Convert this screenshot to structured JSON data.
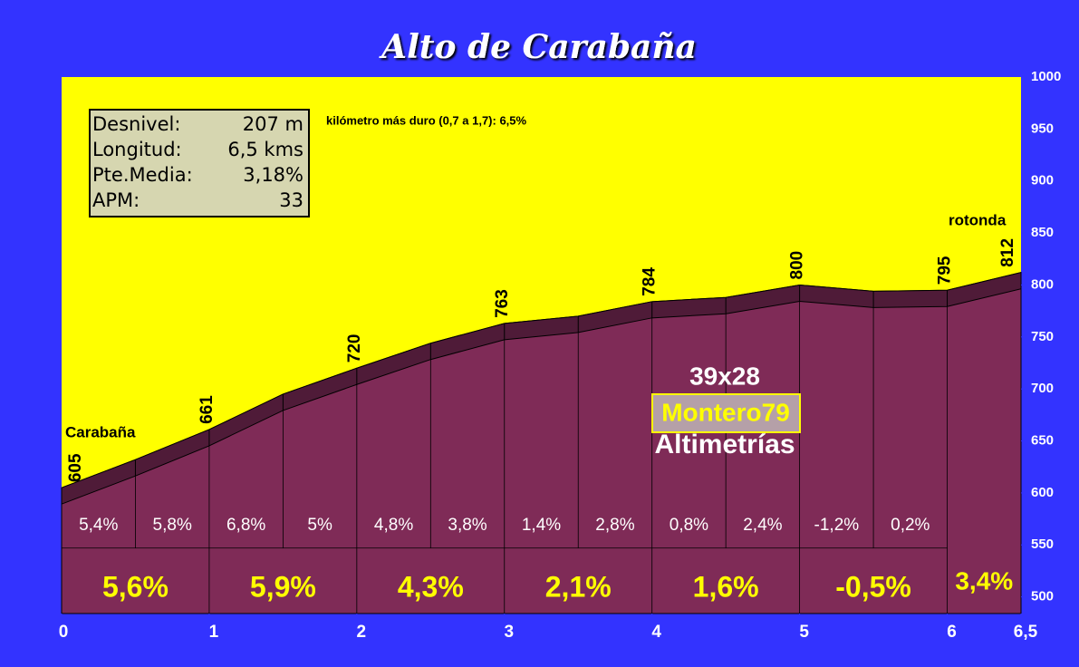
{
  "chart_data": {
    "type": "area",
    "title": "Alto de Carabaña",
    "color": "#7f2b57",
    "band_color": "#4f1b38",
    "background": "#ffff00",
    "x": [
      0,
      0.5,
      1,
      1.5,
      2,
      2.5,
      3,
      3.5,
      4,
      4.5,
      5,
      5.5,
      6,
      6.5
    ],
    "values": [
      605,
      632,
      661,
      695,
      720,
      744,
      763,
      770,
      784,
      788,
      800,
      794,
      795,
      812
    ],
    "xlim": [
      0,
      6.5
    ],
    "xticks": [
      0,
      1,
      2,
      3,
      4,
      5,
      6,
      {
        "value": 6.5,
        "label": "6,5"
      }
    ],
    "ylim": [
      484,
      1000
    ],
    "yticks": [
      500,
      550,
      600,
      650,
      700,
      750,
      800,
      850,
      900,
      950,
      1000
    ],
    "elevation_labels": {
      "x": [
        0,
        1,
        2,
        3,
        4,
        5,
        6,
        6.5
      ],
      "values": [
        605,
        661,
        720,
        763,
        784,
        800,
        795,
        812
      ]
    },
    "segment_grades": {
      "values": [
        5.4,
        5.8,
        6.8,
        5,
        4.8,
        3.8,
        1.4,
        2.8,
        0.8,
        2.4,
        -1.2,
        0.2
      ],
      "value_labels": [
        "5,4%",
        "5,8%",
        "6,8%",
        "5%",
        "4,8%",
        "3,8%",
        "1,4%",
        "2,8%",
        "0,8%",
        "2,4%",
        "-1,2%",
        "0,2%"
      ]
    },
    "km_grades": {
      "values": [
        5.6,
        5.9,
        4.3,
        2.1,
        1.6,
        -0.5,
        3.4
      ],
      "value_labels": [
        "5,6%",
        "5,9%",
        "4,3%",
        "2,1%",
        "1,6%",
        "-0,5%",
        "3,4%"
      ]
    },
    "place_labels": [
      "Carabaña",
      "rotonda"
    ],
    "note": "kilómetro más duro (0,7 a 1,7):  6,5%",
    "info_box": [
      {
        "label": "Desnivel:",
        "value": "207 m"
      },
      {
        "label": "Longitud:",
        "value": "6,5 kms"
      },
      {
        "label": "Pte.Media:",
        "value": "3,18%"
      },
      {
        "label": "APM:",
        "value": "33"
      }
    ],
    "watermark": [
      "39x28",
      "Montero79",
      "Altimetrías"
    ]
  }
}
